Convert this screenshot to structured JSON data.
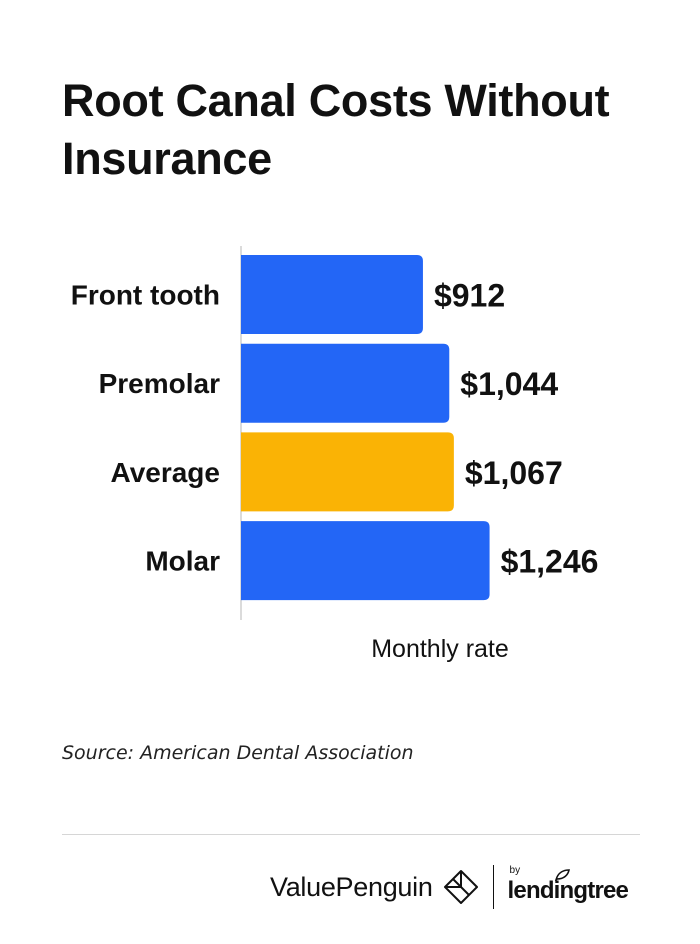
{
  "title": "Root Canal Costs Without Insurance",
  "source": "Source: American Dental Association",
  "footer": {
    "brand": "ValuePenguin",
    "by": "by",
    "partner": "lendingtree"
  },
  "colors": {
    "bar_default": "#2366f6",
    "bar_highlight": "#fab305",
    "text": "#111111",
    "axis_line": "#cfcfcf"
  },
  "chart_data": {
    "type": "bar",
    "orientation": "horizontal",
    "categories": [
      "Front tooth",
      "Premolar",
      "Average",
      "Molar"
    ],
    "values": [
      912,
      1044,
      1067,
      1246
    ],
    "value_labels": [
      "$912",
      "$1,044",
      "$1,067",
      "$1,246"
    ],
    "highlight": [
      "Average"
    ],
    "xlabel": "Monthly rate",
    "xlim": [
      0,
      1300
    ],
    "grid": false,
    "legend": "none"
  }
}
